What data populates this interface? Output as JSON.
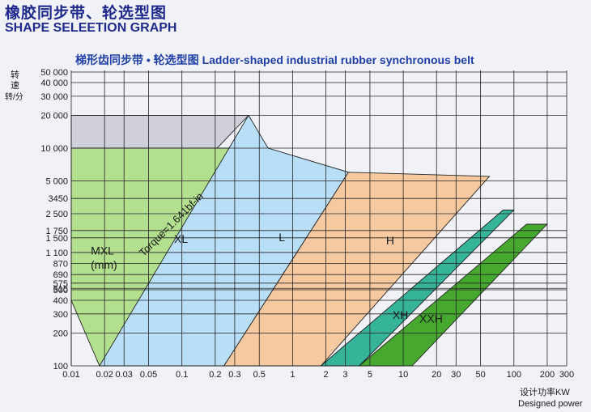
{
  "header": {
    "title_cn": "橡胶同步带、轮选型图",
    "title_en": "SHAPE SELEETION GRAPH"
  },
  "chart_data": {
    "type": "area",
    "title": "梯形齿同步带 • 轮选型图  Ladder-shaped industrial rubber synchronous belt",
    "ylabel_lines": [
      "转",
      "速",
      "转/分"
    ],
    "xlabel_lines": [
      "设计功率KW",
      "Designed power"
    ],
    "xscale": "log",
    "yscale": "log",
    "xlim": [
      0.01,
      300
    ],
    "ylim": [
      100,
      50000
    ],
    "x_ticks": [
      {
        "label": "0.01",
        "value": 0.01
      },
      {
        "label": "0.02",
        "value": 0.02
      },
      {
        "label": "0.03",
        "value": 0.03
      },
      {
        "label": "0.05",
        "value": 0.05
      },
      {
        "label": "0.1",
        "value": 0.1
      },
      {
        "label": "0.2",
        "value": 0.2
      },
      {
        "label": "0.3",
        "value": 0.3
      },
      {
        "label": "0.5",
        "value": 0.5
      },
      {
        "label": "1",
        "value": 1
      },
      {
        "label": "2",
        "value": 2
      },
      {
        "label": "3",
        "value": 3
      },
      {
        "label": "5",
        "value": 5
      },
      {
        "label": "10",
        "value": 10
      },
      {
        "label": "20",
        "value": 20
      },
      {
        "label": "30",
        "value": 30
      },
      {
        "label": "50",
        "value": 50
      },
      {
        "label": "100",
        "value": 100
      },
      {
        "label": "200",
        "value": 200
      },
      {
        "label": "300",
        "value": 300
      }
    ],
    "y_ticks": [
      {
        "label": "50 000",
        "value": 50000
      },
      {
        "label": "40 000",
        "value": 40000
      },
      {
        "label": "30 000",
        "value": 30000
      },
      {
        "label": "20 000",
        "value": 20000
      },
      {
        "label": "10 000",
        "value": 10000
      },
      {
        "label": "5 000",
        "value": 5000
      },
      {
        "label": "3450",
        "value": 3450
      },
      {
        "label": "2 500",
        "value": 2500
      },
      {
        "label": "1 750",
        "value": 1750
      },
      {
        "label": "1 500",
        "value": 1500
      },
      {
        "label": "1 100",
        "value": 1100
      },
      {
        "label": "870",
        "value": 870
      },
      {
        "label": "690",
        "value": 690
      },
      {
        "label": "575",
        "value": 575
      },
      {
        "label": "515",
        "value": 515
      },
      {
        "label": "500",
        "value": 500
      },
      {
        "label": "400",
        "value": 400
      },
      {
        "label": "300",
        "value": 300
      },
      {
        "label": "200",
        "value": 200
      },
      {
        "label": "100",
        "value": 100
      }
    ],
    "grid": true,
    "bands": [
      {
        "name": "MXL\n(mm)",
        "color": "#cfd0da",
        "polygon": [
          [
            0.01,
            100
          ],
          [
            0.01,
            20000
          ],
          [
            0.4,
            20000
          ],
          [
            0.01,
            400
          ]
        ]
      },
      {
        "name": "XL",
        "color": "#b3e08f",
        "polygon": [
          [
            0.01,
            400
          ],
          [
            0.01,
            10000
          ],
          [
            0.6,
            10000
          ],
          [
            0.018,
            100
          ]
        ]
      },
      {
        "name": "L",
        "color": "#b9def7",
        "polygon": [
          [
            0.018,
            100
          ],
          [
            0.4,
            20000
          ],
          [
            0.6,
            10000
          ],
          [
            3.2,
            6000
          ],
          [
            0.24,
            100
          ]
        ]
      },
      {
        "name": "H",
        "color": "#f7c9a0",
        "polygon": [
          [
            0.24,
            100
          ],
          [
            3.2,
            6000
          ],
          [
            60,
            5500
          ],
          [
            1.8,
            100
          ]
        ]
      },
      {
        "name": "XH",
        "color": "#36b49a",
        "polygon": [
          [
            1.8,
            100
          ],
          [
            80,
            2700
          ],
          [
            100,
            2700
          ],
          [
            4,
            100
          ]
        ]
      },
      {
        "name": "XXH",
        "color": "#46a82e",
        "polygon": [
          [
            4,
            100
          ],
          [
            130,
            2000
          ],
          [
            200,
            2000
          ],
          [
            12,
            100
          ]
        ]
      }
    ],
    "band_labels": [
      {
        "text": "MXL",
        "x": 0.015,
        "y": 1050
      },
      {
        "text": "(mm)",
        "x": 0.015,
        "y": 780
      },
      {
        "text": "XL",
        "x": 0.085,
        "y": 1350
      },
      {
        "text": "L",
        "x": 0.75,
        "y": 1400
      },
      {
        "text": "H",
        "x": 7,
        "y": 1300
      },
      {
        "text": "XH",
        "x": 8,
        "y": 270
      },
      {
        "text": "XXH",
        "x": 14,
        "y": 250
      }
    ],
    "annotation": {
      "text": "Torque=1.641bf-in",
      "x": 0.045,
      "y": 1000,
      "x2": 0.35,
      "y2": 8000
    }
  }
}
